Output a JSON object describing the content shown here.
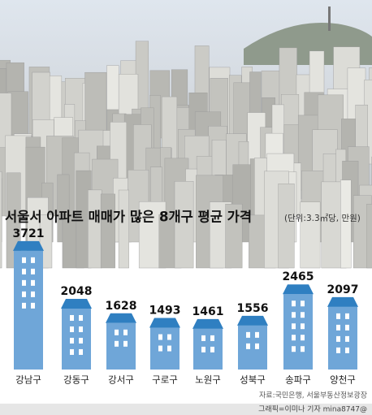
{
  "chart_data": {
    "type": "bar",
    "title": "서울서 아파트 매매가 많은 8개구 평균 가격",
    "subtitle": "(단위:3.3㎡당, 만원)",
    "categories": [
      "강남구",
      "강동구",
      "강서구",
      "구로구",
      "노원구",
      "성북구",
      "송파구",
      "양천구"
    ],
    "values": [
      3721,
      2048,
      1628,
      1493,
      1461,
      1556,
      2465,
      2097
    ],
    "color": "#6fa6d8",
    "roof_color": "#2f7fc1",
    "source": "자료:국민은행, 서울부동산정보광장",
    "credit": "그래픽=이미나 기자 mina8747@"
  }
}
